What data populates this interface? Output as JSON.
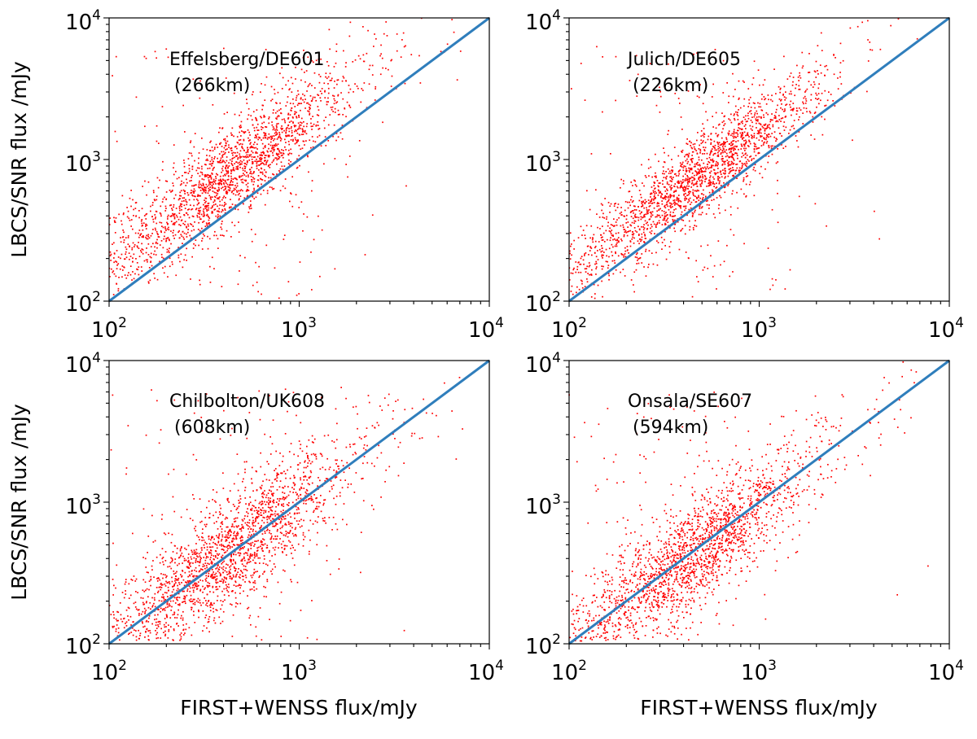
{
  "chart_data": [
    {
      "type": "scatter",
      "title": "",
      "annotation_line1": "Effelsberg/DE601",
      "annotation_line2": "(266km)",
      "xlabel": "",
      "ylabel": "LBCS/SNR flux /mJy",
      "xscale": "log",
      "yscale": "log",
      "xlim": [
        100,
        10000
      ],
      "ylim": [
        100,
        10000
      ],
      "x_tick_labels": [
        {
          "base": "10",
          "exp": "2"
        },
        {
          "base": "10",
          "exp": "3"
        },
        {
          "base": "10",
          "exp": "4"
        }
      ],
      "y_tick_labels": [
        {
          "base": "10",
          "exp": "2"
        },
        {
          "base": "10",
          "exp": "3"
        },
        {
          "base": "10",
          "exp": "4"
        }
      ],
      "reference_line": {
        "name": "1:1 line",
        "x": [
          100,
          10000
        ],
        "y": [
          100,
          10000
        ],
        "color": "#2f7ebc"
      },
      "points": {
        "color": "#ff0000",
        "count": 2000,
        "ratio_offset_dex": 0.26,
        "ratio_scatter_dex": 0.17,
        "x_center_log": 2.68,
        "x_spread_dex": 0.3
      }
    },
    {
      "type": "scatter",
      "title": "",
      "annotation_line1": "Julich/DE605",
      "annotation_line2": "(226km)",
      "xlabel": "",
      "ylabel": "",
      "xscale": "log",
      "yscale": "log",
      "xlim": [
        100,
        10000
      ],
      "ylim": [
        100,
        10000
      ],
      "x_tick_labels": [
        {
          "base": "10",
          "exp": "2"
        },
        {
          "base": "10",
          "exp": "3"
        },
        {
          "base": "10",
          "exp": "4"
        }
      ],
      "y_tick_labels": [
        {
          "base": "10",
          "exp": "2"
        },
        {
          "base": "10",
          "exp": "3"
        },
        {
          "base": "10",
          "exp": "4"
        }
      ],
      "reference_line": {
        "name": "1:1 line",
        "x": [
          100,
          10000
        ],
        "y": [
          100,
          10000
        ],
        "color": "#2f7ebc"
      },
      "points": {
        "color": "#ff0000",
        "count": 2000,
        "ratio_offset_dex": 0.2,
        "ratio_scatter_dex": 0.15,
        "x_center_log": 2.7,
        "x_spread_dex": 0.3
      }
    },
    {
      "type": "scatter",
      "title": "",
      "annotation_line1": "Chilbolton/UK608",
      "annotation_line2": "(608km)",
      "xlabel": "FIRST+WENSS flux/mJy",
      "ylabel": "LBCS/SNR flux /mJy",
      "xscale": "log",
      "yscale": "log",
      "xlim": [
        100,
        10000
      ],
      "ylim": [
        100,
        10000
      ],
      "x_tick_labels": [
        {
          "base": "10",
          "exp": "2"
        },
        {
          "base": "10",
          "exp": "3"
        },
        {
          "base": "10",
          "exp": "4"
        }
      ],
      "y_tick_labels": [
        {
          "base": "10",
          "exp": "2"
        },
        {
          "base": "10",
          "exp": "3"
        },
        {
          "base": "10",
          "exp": "4"
        }
      ],
      "reference_line": {
        "name": "1:1 line",
        "x": [
          100,
          10000
        ],
        "y": [
          100,
          10000
        ],
        "color": "#2f7ebc"
      },
      "points": {
        "color": "#ff0000",
        "count": 2000,
        "ratio_offset_dex": 0.0,
        "ratio_scatter_dex": 0.2,
        "x_center_log": 2.66,
        "x_spread_dex": 0.3
      }
    },
    {
      "type": "scatter",
      "title": "",
      "annotation_line1": "Onsala/SE607",
      "annotation_line2": "(594km)",
      "xlabel": "FIRST+WENSS flux/mJy",
      "ylabel": "",
      "xscale": "log",
      "yscale": "log",
      "xlim": [
        100,
        10000
      ],
      "ylim": [
        100,
        10000
      ],
      "x_tick_labels": [
        {
          "base": "10",
          "exp": "2"
        },
        {
          "base": "10",
          "exp": "3"
        },
        {
          "base": "10",
          "exp": "4"
        }
      ],
      "y_tick_labels": [
        {
          "base": "10",
          "exp": "2"
        },
        {
          "base": "10",
          "exp": "3"
        },
        {
          "base": "10",
          "exp": "4"
        }
      ],
      "reference_line": {
        "name": "1:1 line",
        "x": [
          100,
          10000
        ],
        "y": [
          100,
          10000
        ],
        "color": "#2f7ebc"
      },
      "points": {
        "color": "#ff0000",
        "count": 2000,
        "ratio_offset_dex": -0.02,
        "ratio_scatter_dex": 0.19,
        "x_center_log": 2.66,
        "x_spread_dex": 0.3
      }
    }
  ]
}
